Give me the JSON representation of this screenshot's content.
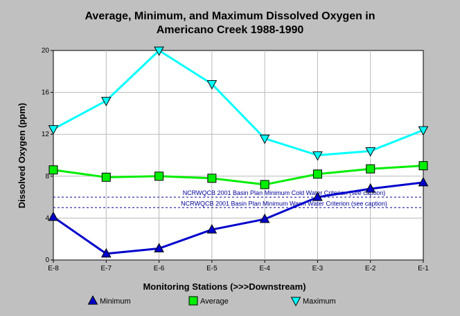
{
  "chart_data": {
    "type": "line",
    "title_line1": "Average, Minimum, and Maximum Dissolved Oxygen in",
    "title_line2": "Americano Creek 1988-1990",
    "xlabel": "Monitoring Stations (>>>Downstream)",
    "ylabel": "Dissolved Oxygen (ppm)",
    "categories": [
      "E-8",
      "E-7",
      "E-6",
      "E-5",
      "E-4",
      "E-3",
      "E-2",
      "E-1"
    ],
    "ylim": [
      0,
      20
    ],
    "yticks": [
      0,
      4,
      8,
      12,
      16,
      20
    ],
    "grid": true,
    "legend_position": "bottom",
    "series": [
      {
        "name": "Minimum",
        "marker": "triangle-up",
        "color": "#0000cc",
        "values": [
          4.1,
          0.6,
          1.1,
          2.9,
          3.9,
          6.0,
          6.8,
          7.4
        ]
      },
      {
        "name": "Average",
        "marker": "square",
        "color": "#00ee00",
        "values": [
          8.6,
          7.9,
          8.0,
          7.8,
          7.2,
          8.2,
          8.7,
          9.0
        ]
      },
      {
        "name": "Maximum",
        "marker": "triangle-down",
        "color": "#00ffff",
        "values": [
          12.5,
          15.2,
          20.0,
          16.8,
          11.6,
          10.0,
          10.4,
          12.4
        ]
      }
    ],
    "reference_lines": [
      {
        "label": "NCRWQCB 2001 Basin Plan Minimum Cold Water Criterion (see caption)",
        "value": 6.0
      },
      {
        "label": "NCRWQCB 2001 Basin Plan Minimum Warm Water Criterion (see caption)",
        "value": 5.0
      }
    ]
  }
}
